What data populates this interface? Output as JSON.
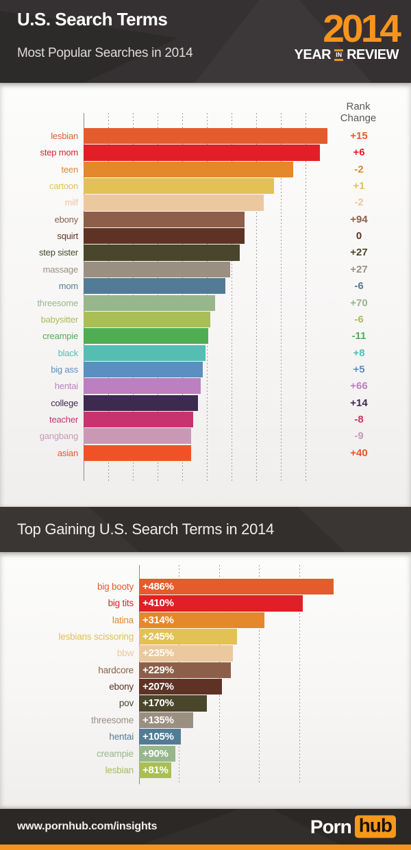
{
  "header": {
    "title": "U.S. Search Terms",
    "subtitle": "Most Popular Searches in 2014",
    "logo": {
      "year": "2014",
      "word1": "YEAR",
      "word2": "IN",
      "word3": "REVIEW"
    }
  },
  "chart_data": [
    {
      "type": "bar",
      "orientation": "horizontal",
      "title": "Most Popular Searches in 2014",
      "extra_column_header": "Rank Change",
      "value_note": "No numeric axis shown; values are relative bar lengths estimated as % of the top term",
      "grid": true,
      "legend": false,
      "categories": [
        "lesbian",
        "step mom",
        "teen",
        "cartoon",
        "milf",
        "ebony",
        "squirt",
        "step sister",
        "massage",
        "mom",
        "threesome",
        "babysitter",
        "creampie",
        "black",
        "big ass",
        "hentai",
        "college",
        "teacher",
        "gangbang",
        "asian"
      ],
      "values": [
        100,
        97,
        86,
        78,
        74,
        66,
        66,
        64,
        60,
        58,
        54,
        52,
        51,
        50,
        49,
        48,
        47,
        45,
        44,
        44
      ],
      "rank_changes": [
        "+15",
        "+6",
        "-2",
        "+1",
        "-2",
        "+94",
        "0",
        "+27",
        "+27",
        "-6",
        "+70",
        "-6",
        "-11",
        "+8",
        "+5",
        "+66",
        "+14",
        "-8",
        "-9",
        "+40"
      ],
      "colors": [
        "#E45B2D",
        "#E01F26",
        "#E5872B",
        "#E2C155",
        "#EBC89E",
        "#8D5F4A",
        "#5E3326",
        "#4A462B",
        "#9B8F82",
        "#527C95",
        "#97B68C",
        "#A9BE55",
        "#4FAE53",
        "#54BEB3",
        "#5B8FBF",
        "#BC7FC0",
        "#3D2A4F",
        "#C8336F",
        "#C998B5",
        "#EF5227"
      ]
    },
    {
      "type": "bar",
      "orientation": "horizontal",
      "title": "Top Gaining U.S. Search Terms in 2014",
      "xlim": [
        0,
        500
      ],
      "gridline_values": [
        100,
        200,
        300,
        400
      ],
      "grid": true,
      "legend": false,
      "unit": "% increase",
      "categories": [
        "big booty",
        "big tits",
        "latina",
        "lesbians scissoring",
        "bbw",
        "hardcore",
        "ebony",
        "pov",
        "threesome",
        "hentai",
        "creampie",
        "lesbian"
      ],
      "values": [
        486,
        410,
        314,
        245,
        235,
        229,
        207,
        170,
        135,
        105,
        90,
        81
      ],
      "value_labels": [
        "+486%",
        "+410%",
        "+314%",
        "+245%",
        "+235%",
        "+229%",
        "+207%",
        "+170%",
        "+135%",
        "+105%",
        "+90%",
        "+81%"
      ],
      "colors": [
        "#E45B2D",
        "#E01F26",
        "#E5872B",
        "#E2C155",
        "#EBC89E",
        "#8D5F4A",
        "#5E3326",
        "#4A462B",
        "#9B8F82",
        "#527C95",
        "#97B68C",
        "#A9BE55"
      ]
    }
  ],
  "footer": {
    "url": "www.pornhub.com/insights",
    "brand": {
      "part1": "Porn",
      "part2": "hub"
    }
  },
  "colors": {
    "accent_orange": "#F7941E",
    "header_bg": "#353132",
    "band_bg": "#3A3634",
    "footer_bg": "#2B2826",
    "panel_bg": "#F7F6F5",
    "axis": "#8B8B8B",
    "gridline": "#9C9C9C",
    "rank_header_text": "#58595B",
    "title_text": "#FFFFFF"
  }
}
